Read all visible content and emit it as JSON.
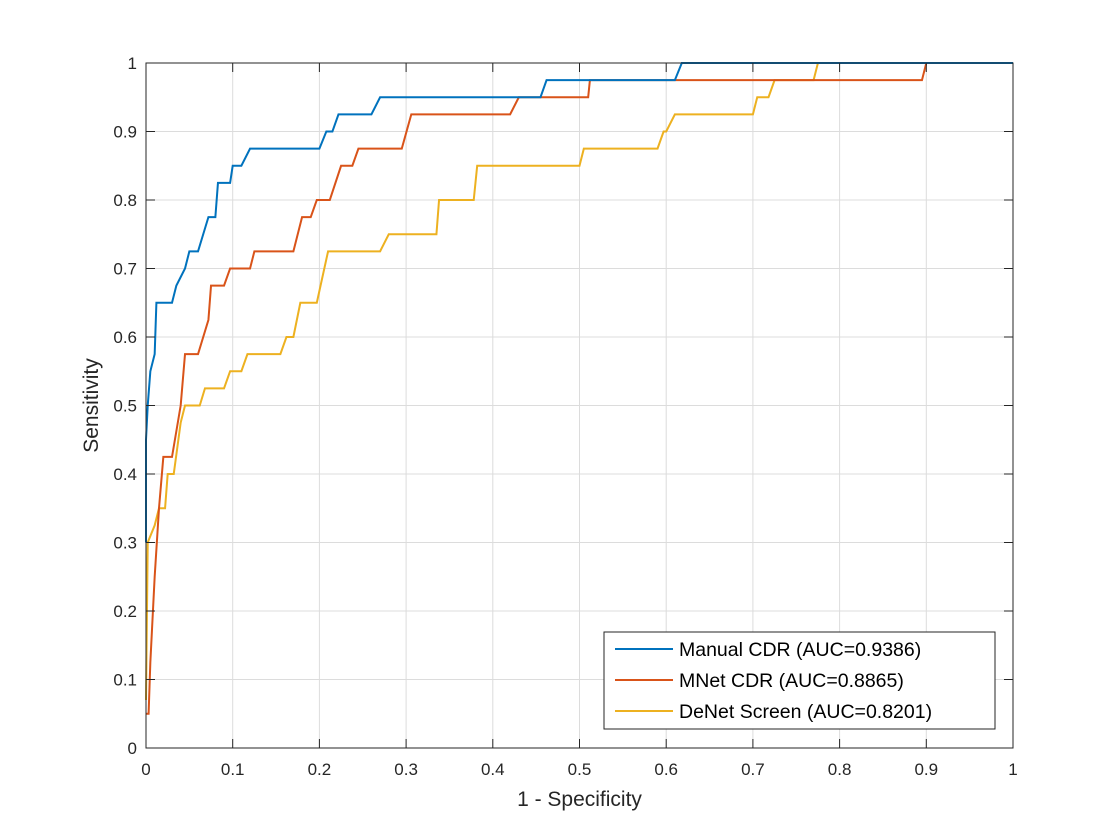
{
  "chart_data": {
    "type": "line",
    "title": "",
    "xlabel": "1 - Specificity",
    "ylabel": "Sensitivity",
    "xlim": [
      0,
      1
    ],
    "ylim": [
      0,
      1
    ],
    "grid": true,
    "legend_position": "bottom-right",
    "x_ticks": [
      0,
      0.1,
      0.2,
      0.3,
      0.4,
      0.5,
      0.6,
      0.7,
      0.8,
      0.9,
      1
    ],
    "y_ticks": [
      0,
      0.1,
      0.2,
      0.3,
      0.4,
      0.5,
      0.6,
      0.7,
      0.8,
      0.9,
      1
    ],
    "x_tick_labels": [
      "0",
      "0.1",
      "0.2",
      "0.3",
      "0.4",
      "0.5",
      "0.6",
      "0.7",
      "0.8",
      "0.9",
      "1"
    ],
    "y_tick_labels": [
      "0",
      "0.1",
      "0.2",
      "0.3",
      "0.4",
      "0.5",
      "0.6",
      "0.7",
      "0.8",
      "0.9",
      "1"
    ],
    "series": [
      {
        "name": "Manual CDR (AUC=0.9386)",
        "color": "#0072BD",
        "points": [
          [
            0,
            0.3
          ],
          [
            0,
            0.45
          ],
          [
            0.002,
            0.5
          ],
          [
            0.005,
            0.55
          ],
          [
            0.01,
            0.575
          ],
          [
            0.012,
            0.65
          ],
          [
            0.03,
            0.65
          ],
          [
            0.035,
            0.675
          ],
          [
            0.045,
            0.7
          ],
          [
            0.05,
            0.725
          ],
          [
            0.06,
            0.725
          ],
          [
            0.072,
            0.775
          ],
          [
            0.08,
            0.775
          ],
          [
            0.083,
            0.825
          ],
          [
            0.097,
            0.825
          ],
          [
            0.1,
            0.85
          ],
          [
            0.11,
            0.85
          ],
          [
            0.12,
            0.875
          ],
          [
            0.2,
            0.875
          ],
          [
            0.208,
            0.9
          ],
          [
            0.215,
            0.9
          ],
          [
            0.222,
            0.925
          ],
          [
            0.26,
            0.925
          ],
          [
            0.27,
            0.95
          ],
          [
            0.455,
            0.95
          ],
          [
            0.462,
            0.975
          ],
          [
            0.61,
            0.975
          ],
          [
            0.618,
            1
          ],
          [
            1,
            1
          ]
        ]
      },
      {
        "name": "MNet CDR (AUC=0.8865)",
        "color": "#D95319",
        "points": [
          [
            0,
            0.05
          ],
          [
            0.003,
            0.05
          ],
          [
            0.005,
            0.125
          ],
          [
            0.01,
            0.25
          ],
          [
            0.015,
            0.35
          ],
          [
            0.02,
            0.425
          ],
          [
            0.03,
            0.425
          ],
          [
            0.04,
            0.5
          ],
          [
            0.045,
            0.575
          ],
          [
            0.06,
            0.575
          ],
          [
            0.072,
            0.625
          ],
          [
            0.075,
            0.675
          ],
          [
            0.09,
            0.675
          ],
          [
            0.097,
            0.7
          ],
          [
            0.12,
            0.7
          ],
          [
            0.125,
            0.725
          ],
          [
            0.17,
            0.725
          ],
          [
            0.18,
            0.775
          ],
          [
            0.19,
            0.775
          ],
          [
            0.197,
            0.8
          ],
          [
            0.212,
            0.8
          ],
          [
            0.225,
            0.85
          ],
          [
            0.238,
            0.85
          ],
          [
            0.245,
            0.875
          ],
          [
            0.295,
            0.875
          ],
          [
            0.306,
            0.925
          ],
          [
            0.42,
            0.925
          ],
          [
            0.43,
            0.95
          ],
          [
            0.51,
            0.95
          ],
          [
            0.512,
            0.975
          ],
          [
            0.895,
            0.975
          ],
          [
            0.9,
            1
          ],
          [
            1,
            1
          ]
        ]
      },
      {
        "name": "DeNet Screen (AUC=0.8201)",
        "color": "#EDB120",
        "points": [
          [
            0,
            0.07
          ],
          [
            0.002,
            0.3
          ],
          [
            0.01,
            0.325
          ],
          [
            0.015,
            0.35
          ],
          [
            0.022,
            0.35
          ],
          [
            0.025,
            0.4
          ],
          [
            0.032,
            0.4
          ],
          [
            0.04,
            0.475
          ],
          [
            0.045,
            0.5
          ],
          [
            0.062,
            0.5
          ],
          [
            0.068,
            0.525
          ],
          [
            0.09,
            0.525
          ],
          [
            0.097,
            0.55
          ],
          [
            0.11,
            0.55
          ],
          [
            0.117,
            0.575
          ],
          [
            0.155,
            0.575
          ],
          [
            0.162,
            0.6
          ],
          [
            0.17,
            0.6
          ],
          [
            0.178,
            0.65
          ],
          [
            0.197,
            0.65
          ],
          [
            0.21,
            0.725
          ],
          [
            0.27,
            0.725
          ],
          [
            0.28,
            0.75
          ],
          [
            0.335,
            0.75
          ],
          [
            0.338,
            0.8
          ],
          [
            0.378,
            0.8
          ],
          [
            0.382,
            0.85
          ],
          [
            0.5,
            0.85
          ],
          [
            0.505,
            0.875
          ],
          [
            0.59,
            0.875
          ],
          [
            0.597,
            0.9
          ],
          [
            0.6,
            0.9
          ],
          [
            0.61,
            0.925
          ],
          [
            0.7,
            0.925
          ],
          [
            0.705,
            0.95
          ],
          [
            0.718,
            0.95
          ],
          [
            0.725,
            0.975
          ],
          [
            0.77,
            0.975
          ],
          [
            0.775,
            1
          ],
          [
            1,
            1
          ]
        ]
      }
    ]
  }
}
